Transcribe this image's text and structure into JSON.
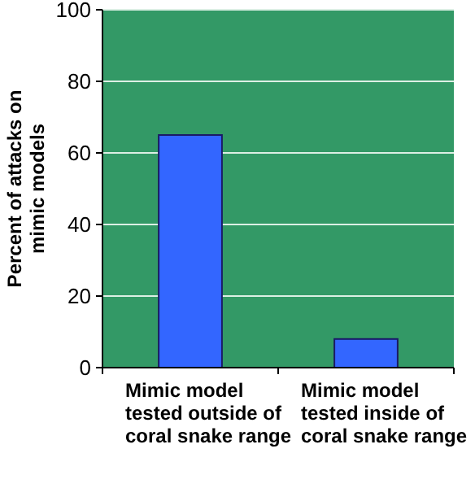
{
  "chart_data": {
    "type": "bar",
    "ylabel": "Percent of attacks on mimic models",
    "categories": [
      "Mimic model tested outside of coral snake range",
      "Mimic model tested inside of coral snake range"
    ],
    "values": [
      65,
      8
    ],
    "color": "#3366ff",
    "ylim": [
      0,
      100
    ],
    "yticks": [
      0,
      20,
      40,
      60,
      80,
      100
    ],
    "grid": "y"
  }
}
